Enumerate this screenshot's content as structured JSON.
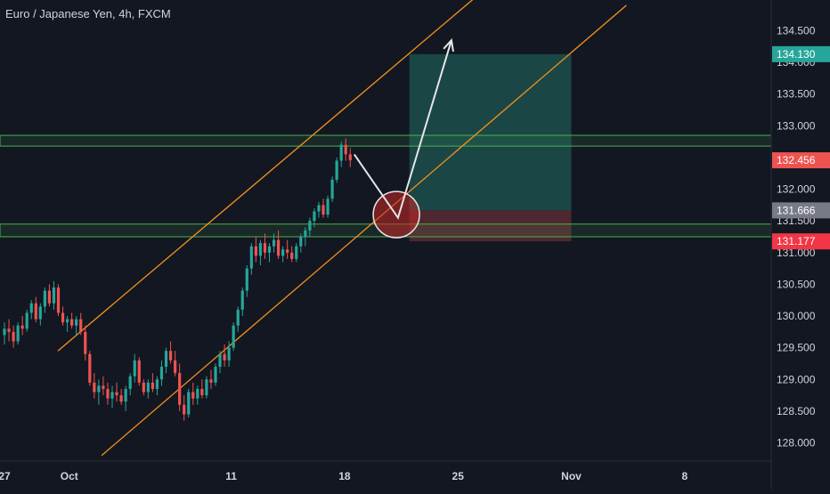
{
  "title": "Euro / Japanese Yen, 4h, FXCM",
  "colors": {
    "background": "#131722",
    "up": "#26a69a",
    "down": "#ef5350",
    "channel": "#f7931a",
    "zone": "#4caf50",
    "text": "#d1d4dc",
    "profit_fill": "#1c4f4c",
    "loss_fill": "#5a2a33",
    "label_target": "#26a69a",
    "label_last": "#ef5350",
    "label_entry": "#787b86",
    "label_stop": "#f23645"
  },
  "chart_data": {
    "type": "candlestick",
    "title": "Euro / Japanese Yen, 4h, FXCM",
    "ylim": [
      127.8,
      134.9
    ],
    "y_ticks": [
      "128.000",
      "128.500",
      "129.000",
      "129.500",
      "130.000",
      "130.500",
      "131.000",
      "131.500",
      "132.000",
      "132.500",
      "133.000",
      "133.500",
      "134.000",
      "134.500"
    ],
    "x_ticks": [
      {
        "label": "27",
        "day": 0
      },
      {
        "label": "Oct",
        "day": 4
      },
      {
        "label": "11",
        "day": 14
      },
      {
        "label": "18",
        "day": 21
      },
      {
        "label": "25",
        "day": 28
      },
      {
        "label": "Nov",
        "day": 35
      },
      {
        "label": "8",
        "day": 42
      }
    ],
    "price_labels": [
      {
        "label": "134.130",
        "value": 134.13,
        "role": "target"
      },
      {
        "label": "132.456",
        "value": 132.456,
        "role": "last"
      },
      {
        "label": "131.666",
        "value": 131.666,
        "role": "entry"
      },
      {
        "label": "131.177",
        "value": 131.177,
        "role": "stop"
      }
    ],
    "candles": [
      [
        129.7,
        129.9,
        129.55,
        129.8
      ],
      [
        129.8,
        129.95,
        129.6,
        129.75
      ],
      [
        129.75,
        129.85,
        129.5,
        129.6
      ],
      [
        129.6,
        129.9,
        129.55,
        129.85
      ],
      [
        129.85,
        130.0,
        129.7,
        129.8
      ],
      [
        129.8,
        130.1,
        129.75,
        130.05
      ],
      [
        130.05,
        130.25,
        129.95,
        130.2
      ],
      [
        130.2,
        130.3,
        129.9,
        129.95
      ],
      [
        129.95,
        130.2,
        129.85,
        130.15
      ],
      [
        130.15,
        130.45,
        130.05,
        130.4
      ],
      [
        130.4,
        130.5,
        130.15,
        130.2
      ],
      [
        130.2,
        130.55,
        130.1,
        130.45
      ],
      [
        130.45,
        130.5,
        130.0,
        130.05
      ],
      [
        130.05,
        130.15,
        129.85,
        129.9
      ],
      [
        129.9,
        130.0,
        129.75,
        129.95
      ],
      [
        129.95,
        130.05,
        129.8,
        129.85
      ],
      [
        129.85,
        130.0,
        129.7,
        129.95
      ],
      [
        129.95,
        130.05,
        129.7,
        129.75
      ],
      [
        129.75,
        129.85,
        129.3,
        129.4
      ],
      [
        129.4,
        129.45,
        128.9,
        128.95
      ],
      [
        128.95,
        129.1,
        128.7,
        128.8
      ],
      [
        128.8,
        129.0,
        128.6,
        128.9
      ],
      [
        128.9,
        129.05,
        128.75,
        128.85
      ],
      [
        128.85,
        128.95,
        128.6,
        128.7
      ],
      [
        128.7,
        128.9,
        128.55,
        128.8
      ],
      [
        128.8,
        128.95,
        128.65,
        128.75
      ],
      [
        128.75,
        128.85,
        128.6,
        128.65
      ],
      [
        128.65,
        128.9,
        128.5,
        128.85
      ],
      [
        128.85,
        129.1,
        128.75,
        129.05
      ],
      [
        129.05,
        129.4,
        128.95,
        129.3
      ],
      [
        129.3,
        129.35,
        128.9,
        128.95
      ],
      [
        128.95,
        129.0,
        128.75,
        128.8
      ],
      [
        128.8,
        129.0,
        128.7,
        128.95
      ],
      [
        128.95,
        129.1,
        128.8,
        128.85
      ],
      [
        128.85,
        129.05,
        128.75,
        129.0
      ],
      [
        129.0,
        129.3,
        128.9,
        129.2
      ],
      [
        129.2,
        129.5,
        129.1,
        129.45
      ],
      [
        129.45,
        129.6,
        129.25,
        129.3
      ],
      [
        129.3,
        129.45,
        129.05,
        129.1
      ],
      [
        129.1,
        129.25,
        128.5,
        128.6
      ],
      [
        128.6,
        128.75,
        128.35,
        128.45
      ],
      [
        128.45,
        128.85,
        128.4,
        128.8
      ],
      [
        128.8,
        128.95,
        128.6,
        128.7
      ],
      [
        128.7,
        128.9,
        128.6,
        128.85
      ],
      [
        128.85,
        129.0,
        128.7,
        128.75
      ],
      [
        128.75,
        129.05,
        128.7,
        129.0
      ],
      [
        129.0,
        129.15,
        128.85,
        128.95
      ],
      [
        128.95,
        129.25,
        128.9,
        129.2
      ],
      [
        129.2,
        129.45,
        129.1,
        129.4
      ],
      [
        129.4,
        129.55,
        129.2,
        129.3
      ],
      [
        129.3,
        129.6,
        129.2,
        129.5
      ],
      [
        129.5,
        129.9,
        129.45,
        129.85
      ],
      [
        129.85,
        130.15,
        129.75,
        130.1
      ],
      [
        130.1,
        130.45,
        130.0,
        130.4
      ],
      [
        130.4,
        130.8,
        130.3,
        130.75
      ],
      [
        130.75,
        131.15,
        130.65,
        131.1
      ],
      [
        131.1,
        131.25,
        130.85,
        130.95
      ],
      [
        130.95,
        131.2,
        130.8,
        131.15
      ],
      [
        131.15,
        131.3,
        130.9,
        131.0
      ],
      [
        131.0,
        131.15,
        130.85,
        131.1
      ],
      [
        131.1,
        131.3,
        131.0,
        131.2
      ],
      [
        131.2,
        131.35,
        130.9,
        130.95
      ],
      [
        130.95,
        131.1,
        130.85,
        131.05
      ],
      [
        131.05,
        131.2,
        130.9,
        131.0
      ],
      [
        131.0,
        131.1,
        130.85,
        130.9
      ],
      [
        130.9,
        131.15,
        130.85,
        131.1
      ],
      [
        131.1,
        131.3,
        131.0,
        131.25
      ],
      [
        131.25,
        131.4,
        131.1,
        131.35
      ],
      [
        131.35,
        131.55,
        131.25,
        131.5
      ],
      [
        131.5,
        131.7,
        131.4,
        131.65
      ],
      [
        131.65,
        131.8,
        131.55,
        131.75
      ],
      [
        131.75,
        131.85,
        131.55,
        131.6
      ],
      [
        131.6,
        131.9,
        131.55,
        131.85
      ],
      [
        131.85,
        132.2,
        131.8,
        132.15
      ],
      [
        132.15,
        132.5,
        132.1,
        132.45
      ],
      [
        132.45,
        132.75,
        132.35,
        132.7
      ],
      [
        132.7,
        132.8,
        132.45,
        132.55
      ],
      [
        132.55,
        132.65,
        132.35,
        132.456
      ]
    ],
    "channel": {
      "lower": {
        "start": {
          "day": 6.0,
          "price": 127.8
        },
        "end": {
          "day": 38.4,
          "price": 134.9
        }
      },
      "upper": {
        "start": {
          "day": 3.3,
          "price": 129.45
        },
        "end": {
          "day": 31.5,
          "price": 135.55
        }
      }
    },
    "zones": [
      {
        "from": 132.68,
        "to": 132.85
      },
      {
        "from": 131.25,
        "to": 131.45
      }
    ],
    "position": {
      "start_day": 25.0,
      "end_day": 35.0,
      "entry": 131.666,
      "target": 134.13,
      "stop": 131.177
    },
    "annotations": {
      "circle": {
        "day": 24.2,
        "price": 131.6
      },
      "path": [
        {
          "day": 21.6,
          "price": 132.55
        },
        {
          "day": 24.3,
          "price": 131.55
        },
        {
          "day": 27.6,
          "price": 134.35
        }
      ]
    }
  }
}
